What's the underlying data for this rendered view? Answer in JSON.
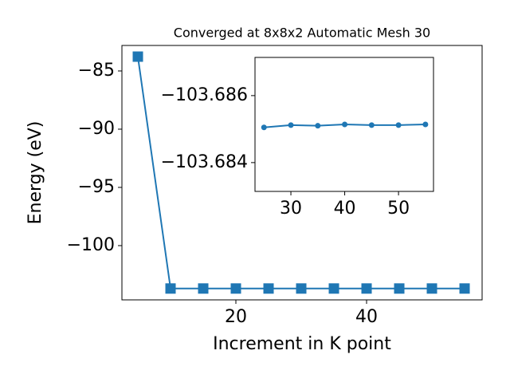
{
  "chart_data": [
    {
      "type": "line",
      "title": "Converged at 8x8x2 Automatic Mesh 30",
      "xlabel": "Increment in K point",
      "ylabel": "Energy (eV)",
      "x": [
        5,
        10,
        15,
        20,
        25,
        30,
        35,
        40,
        45,
        50,
        55
      ],
      "series": [
        {
          "color": "#1f77b4",
          "marker": "square",
          "values": [
            -83.77,
            -103.685,
            -103.685,
            -103.685,
            -103.68505,
            -103.68512,
            -103.6851,
            -103.68514,
            -103.68512,
            -103.68512,
            -103.68514
          ]
        }
      ],
      "xlim": [
        2.56,
        57.68
      ],
      "xticks": [
        20,
        40
      ],
      "ylim": [
        -104.66,
        -82.81
      ],
      "yticks": [
        {
          "value": -100,
          "label": "−100"
        },
        {
          "value": -95,
          "label": "−95"
        },
        {
          "value": -90,
          "label": "−90"
        },
        {
          "value": -85,
          "label": "−85"
        }
      ]
    },
    {
      "type": "line",
      "x": [
        25,
        30,
        35,
        40,
        45,
        50,
        55
      ],
      "series": [
        {
          "color": "#1f77b4",
          "marker": "circle",
          "values": [
            -103.68505,
            -103.68512,
            -103.6851,
            -103.68514,
            -103.68512,
            -103.68512,
            -103.68514
          ]
        }
      ],
      "xlim": [
        23.33,
        56.5
      ],
      "xticks": [
        30,
        40,
        50
      ],
      "ylim": [
        -103.68314,
        -103.68714
      ],
      "yticks": [
        {
          "value": -103.684,
          "label": "−103.684"
        },
        {
          "value": -103.686,
          "label": "−103.686"
        }
      ]
    }
  ]
}
